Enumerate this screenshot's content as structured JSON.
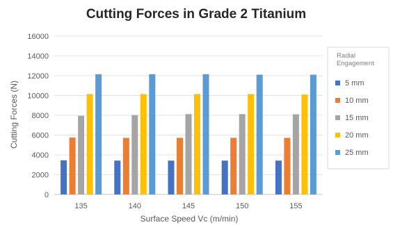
{
  "chart_data": {
    "type": "bar",
    "title": "Cutting Forces in Grade 2 Titanium",
    "xlabel": "Surface Speed Vc (m/min)",
    "ylabel": "Cutting Forces (N)",
    "ylim": [
      0,
      16000
    ],
    "yticks": [
      0,
      2000,
      4000,
      6000,
      8000,
      10000,
      12000,
      14000,
      16000
    ],
    "grid": true,
    "legend_title": "Radial Engagement",
    "legend_position": "right",
    "categories": [
      "135",
      "140",
      "145",
      "150",
      "155"
    ],
    "series": [
      {
        "name": "5 mm",
        "color": "#4472c4",
        "values": [
          3450,
          3420,
          3420,
          3420,
          3420
        ]
      },
      {
        "name": "10 mm",
        "color": "#ed7d31",
        "values": [
          5750,
          5720,
          5720,
          5720,
          5720
        ]
      },
      {
        "name": "15 mm",
        "color": "#a5a5a5",
        "values": [
          7950,
          8020,
          8120,
          8120,
          8100
        ]
      },
      {
        "name": "20 mm",
        "color": "#ffc000",
        "values": [
          10150,
          10150,
          10150,
          10150,
          10100
        ]
      },
      {
        "name": "25 mm",
        "color": "#5b9bd5",
        "values": [
          12150,
          12150,
          12150,
          12100,
          12100
        ]
      }
    ]
  }
}
